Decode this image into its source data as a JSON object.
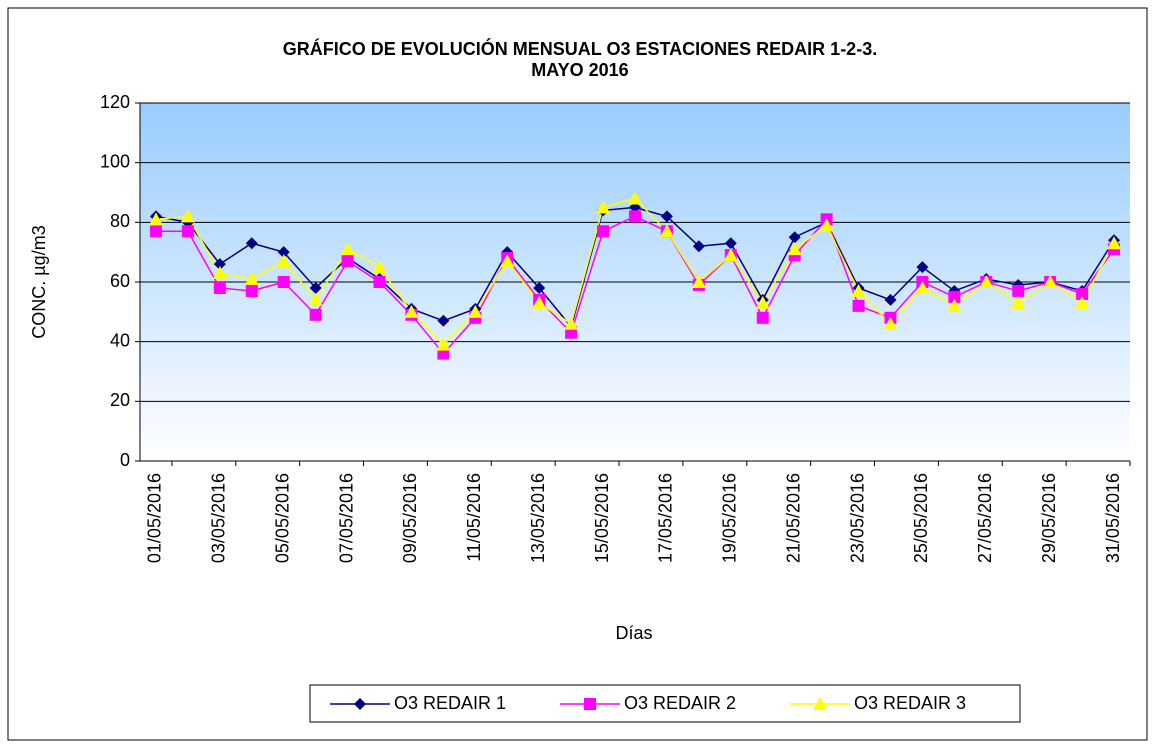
{
  "chart_data": {
    "type": "line",
    "title": [
      "GRÁFICO DE EVOLUCIÓN MENSUAL O3 ESTACIONES REDAIR 1-2-3.",
      "MAYO 2016"
    ],
    "x_label": "Días",
    "y_label": "CONC. µg/m3",
    "categories": [
      "01/05/2016",
      null,
      "03/05/2016",
      null,
      "05/05/2016",
      null,
      "07/05/2016",
      null,
      "09/05/2016",
      null,
      "11/05/2016",
      null,
      "13/05/2016",
      null,
      "15/05/2016",
      null,
      "17/05/2016",
      null,
      "19/05/2016",
      null,
      "21/05/2016",
      null,
      "23/05/2016",
      null,
      "25/05/2016",
      null,
      "27/05/2016",
      null,
      "29/05/2016",
      null,
      "31/05/2016"
    ],
    "series": [
      {
        "name": "O3 REDAIR 1",
        "color": "#000080",
        "values": [
          82,
          80,
          66,
          73,
          70,
          58,
          68,
          61,
          51,
          47,
          51,
          70,
          58,
          45,
          84,
          85,
          82,
          72,
          73,
          54,
          75,
          80,
          58,
          54,
          65,
          57,
          61,
          59,
          60,
          57,
          74
        ]
      },
      {
        "name": "O3 REDAIR 2",
        "color": "#ff00ff",
        "values": [
          77,
          77,
          58,
          57,
          60,
          49,
          67,
          60,
          49,
          36,
          48,
          68,
          54,
          43,
          77,
          82,
          77,
          59,
          69,
          48,
          69,
          81,
          52,
          48,
          60,
          55,
          60,
          57,
          60,
          56,
          71
        ]
      },
      {
        "name": "O3 REDAIR 3",
        "color": "#ffff00",
        "values": [
          81,
          82,
          63,
          61,
          67,
          54,
          71,
          65,
          50,
          39,
          50,
          67,
          53,
          46,
          85,
          88,
          77,
          60,
          69,
          53,
          71,
          79,
          57,
          46,
          58,
          52,
          60,
          53,
          60,
          53,
          73
        ]
      }
    ],
    "ylim": [
      0,
      120
    ],
    "yticks": [
      0,
      20,
      40,
      60,
      80,
      100,
      120
    ],
    "grid": true,
    "legend": "bottom"
  }
}
